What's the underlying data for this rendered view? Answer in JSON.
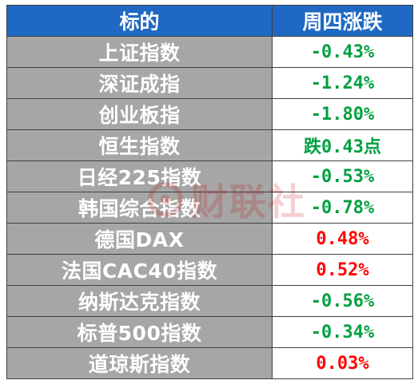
{
  "header": {
    "col_name": "标的",
    "col_change": "周四涨跌"
  },
  "colors": {
    "header_bg": "#1f69c4",
    "name_bg": "#a6a6a6",
    "up": "#ff0000",
    "down": "#00a040"
  },
  "rows": [
    {
      "name": "上证指数",
      "change": "-0.43%",
      "direction": "down"
    },
    {
      "name": "深证成指",
      "change": "-1.24%",
      "direction": "down"
    },
    {
      "name": "创业板指",
      "change": "-1.80%",
      "direction": "down"
    },
    {
      "name": "恒生指数",
      "change": "跌0.43点",
      "direction": "down"
    },
    {
      "name": "日经225指数",
      "change": "-0.53%",
      "direction": "down"
    },
    {
      "name": "韩国综合指数",
      "change": "-0.78%",
      "direction": "down"
    },
    {
      "name": "德国DAX",
      "change": "0.48%",
      "direction": "up"
    },
    {
      "name": "法国CAC40指数",
      "change": "0.52%",
      "direction": "up"
    },
    {
      "name": "纳斯达克指数",
      "change": "-0.56%",
      "direction": "down"
    },
    {
      "name": "标普500指数",
      "change": "-0.34%",
      "direction": "down"
    },
    {
      "name": "道琼斯指数",
      "change": "0.03%",
      "direction": "up"
    }
  ],
  "watermark": {
    "text": "财联社",
    "icon": "cls-logo-icon"
  }
}
